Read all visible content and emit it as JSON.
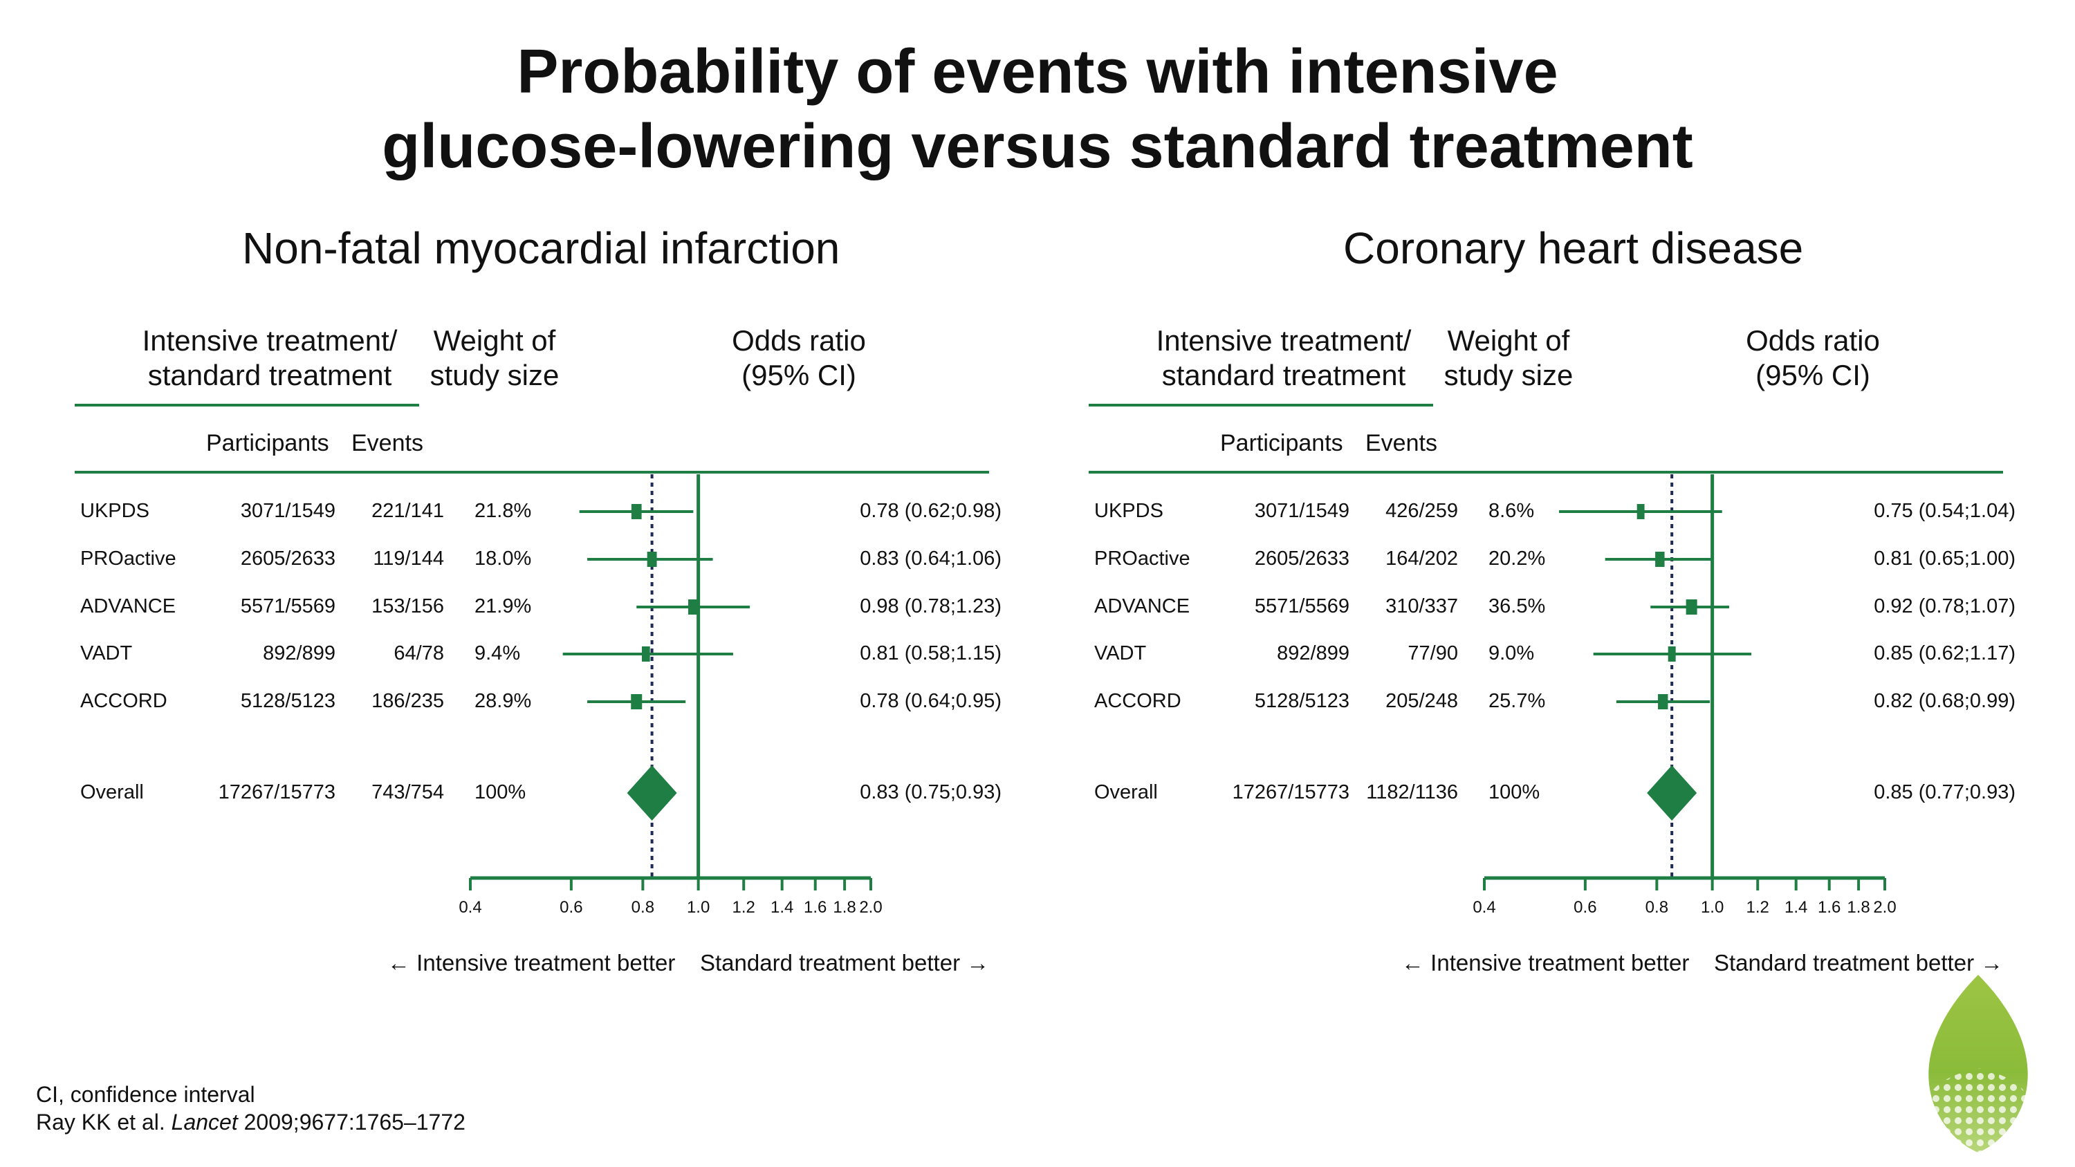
{
  "title": {
    "line1": "Probability of events with intensive",
    "line2": "glucose-lowering versus standard treatment"
  },
  "columns": {
    "intensive_line1": "Intensive treatment/",
    "intensive_line2": "standard treatment",
    "weight_line1": "Weight of",
    "weight_line2": "study size",
    "or_line1": "Odds ratio",
    "or_line2": "(95% CI)",
    "participants": "Participants",
    "events": "Events"
  },
  "arrows": {
    "left": "← Intensive treatment better",
    "right": "Standard treatment better →"
  },
  "footnote": {
    "line1": "CI, confidence interval",
    "line2_pre": "Ray KK et al. ",
    "line2_journal": "Lancet",
    "line2_post": " 2009;9677:1765–1772"
  },
  "colors": {
    "green": "#1e7e43",
    "text": "#111111"
  },
  "logo": {
    "icon": "green-leaf-logo-icon"
  },
  "chart_data": [
    {
      "type": "forest",
      "title": "Non-fatal myocardial infarction",
      "x_scale": "log",
      "xlim": [
        0.4,
        2.0
      ],
      "x_ticks": [
        0.4,
        0.6,
        0.8,
        1.0,
        1.2,
        1.4,
        1.6,
        1.8,
        2.0
      ],
      "x_tick_labels": [
        "0.4",
        "0.6",
        "0.8",
        "1.0",
        "1.2",
        "1.4",
        "1.6",
        "1.8",
        "2.0"
      ],
      "reference_line": 1.0,
      "overall_line": 0.83,
      "rows": [
        {
          "study": "UKPDS",
          "participants": "3071/1549",
          "events": "221/141",
          "weight": "21.8%",
          "or": 0.78,
          "lo": 0.62,
          "hi": 0.98,
          "or_text": "0.78 (0.62;0.98)"
        },
        {
          "study": "PROactive",
          "participants": "2605/2633",
          "events": "119/144",
          "weight": "18.0%",
          "or": 0.83,
          "lo": 0.64,
          "hi": 1.06,
          "or_text": "0.83 (0.64;1.06)"
        },
        {
          "study": "ADVANCE",
          "participants": "5571/5569",
          "events": "153/156",
          "weight": "21.9%",
          "or": 0.98,
          "lo": 0.78,
          "hi": 1.23,
          "or_text": "0.98 (0.78;1.23)"
        },
        {
          "study": "VADT",
          "participants": "892/899",
          "events": "64/78",
          "weight": "9.4%",
          "or": 0.81,
          "lo": 0.58,
          "hi": 1.15,
          "or_text": "0.81 (0.58;1.15)"
        },
        {
          "study": "ACCORD",
          "participants": "5128/5123",
          "events": "186/235",
          "weight": "28.9%",
          "or": 0.78,
          "lo": 0.64,
          "hi": 0.95,
          "or_text": "0.78 (0.64;0.95)"
        }
      ],
      "overall": {
        "study": "Overall",
        "participants": "17267/15773",
        "events": "743/754",
        "weight": "100%",
        "or": 0.83,
        "lo": 0.75,
        "hi": 0.93,
        "or_text": "0.83 (0.75;0.93)"
      }
    },
    {
      "type": "forest",
      "title": "Coronary heart disease",
      "x_scale": "log",
      "xlim": [
        0.4,
        2.0
      ],
      "x_ticks": [
        0.4,
        0.6,
        0.8,
        1.0,
        1.2,
        1.4,
        1.6,
        1.8,
        2.0
      ],
      "x_tick_labels": [
        "0.4",
        "0.6",
        "0.8",
        "1.0",
        "1.2",
        "1.4",
        "1.6",
        "1.8",
        "2.0"
      ],
      "reference_line": 1.0,
      "overall_line": 0.85,
      "rows": [
        {
          "study": "UKPDS",
          "participants": "3071/1549",
          "events": "426/259",
          "weight": "8.6%",
          "or": 0.75,
          "lo": 0.54,
          "hi": 1.04,
          "or_text": "0.75 (0.54;1.04)"
        },
        {
          "study": "PROactive",
          "participants": "2605/2633",
          "events": "164/202",
          "weight": "20.2%",
          "or": 0.81,
          "lo": 0.65,
          "hi": 1.0,
          "or_text": "0.81 (0.65;1.00)"
        },
        {
          "study": "ADVANCE",
          "participants": "5571/5569",
          "events": "310/337",
          "weight": "36.5%",
          "or": 0.92,
          "lo": 0.78,
          "hi": 1.07,
          "or_text": "0.92 (0.78;1.07)"
        },
        {
          "study": "VADT",
          "participants": "892/899",
          "events": "77/90",
          "weight": "9.0%",
          "or": 0.85,
          "lo": 0.62,
          "hi": 1.17,
          "or_text": "0.85 (0.62;1.17)"
        },
        {
          "study": "ACCORD",
          "participants": "5128/5123",
          "events": "205/248",
          "weight": "25.7%",
          "or": 0.82,
          "lo": 0.68,
          "hi": 0.99,
          "or_text": "0.82 (0.68;0.99)"
        }
      ],
      "overall": {
        "study": "Overall",
        "participants": "17267/15773",
        "events": "1182/1136",
        "weight": "100%",
        "or": 0.85,
        "lo": 0.77,
        "hi": 0.93,
        "or_text": "0.85 (0.77;0.93)"
      }
    }
  ]
}
